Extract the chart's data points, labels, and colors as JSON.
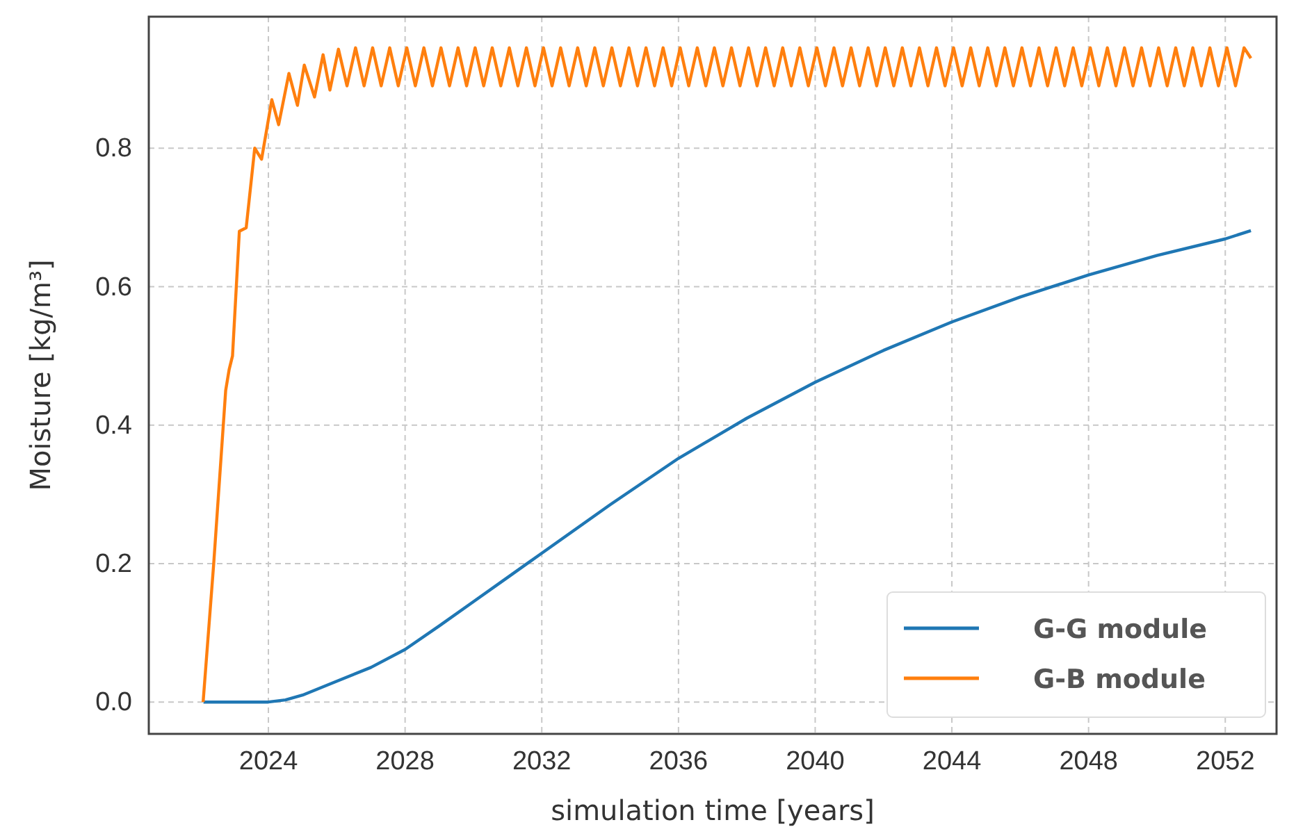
{
  "chart_data": {
    "type": "line",
    "xlabel": "simulation time [years]",
    "ylabel": "Moisture [kg/m³]",
    "xlim": [
      2020.5,
      2053.5
    ],
    "xticks": [
      2024,
      2028,
      2032,
      2036,
      2040,
      2044,
      2048,
      2052
    ],
    "ylim": [
      -0.046,
      0.99
    ],
    "yticks": [
      {
        "value": 0,
        "label": "0.0"
      },
      {
        "value": 0.2,
        "label": "0.2"
      },
      {
        "value": 0.4,
        "label": "0.4"
      },
      {
        "value": 0.6,
        "label": "0.6"
      },
      {
        "value": 0.8,
        "label": "0.8"
      }
    ],
    "grid": true,
    "legend": "bottom right",
    "line_style": "solid",
    "series": [
      {
        "name": "G-G module",
        "color": "#1f77b4",
        "x": [
          2022.1,
          2024,
          2024.5,
          2025,
          2026,
          2027,
          2028,
          2029,
          2030,
          2031,
          2032,
          2034,
          2036,
          2038,
          2040,
          2042,
          2044,
          2046,
          2048,
          2050,
          2052,
          2052.75
        ],
        "values": [
          0,
          0,
          0.003,
          0.01,
          0.03,
          0.05,
          0.076,
          0.11,
          0.145,
          0.18,
          0.215,
          0.285,
          0.352,
          0.41,
          0.462,
          0.508,
          0.549,
          0.585,
          0.617,
          0.645,
          0.669,
          0.681
        ]
      },
      {
        "name": "G-B module",
        "color": "#ff7f0e",
        "x": [
          2022.09,
          2022.4,
          2022.75,
          2022.85,
          2022.95,
          2023.15,
          2023.35,
          2023.6,
          2023.8,
          2024.1,
          2024.3,
          2024.6,
          2024.85,
          2025.05,
          2025.35,
          2025.6,
          2025.8,
          2026.05,
          2026.3,
          2026.55,
          2026.8,
          2027.05,
          2027.3,
          2027.55,
          2027.8,
          2028.05,
          2028.3,
          2028.55,
          2028.8,
          2029.05,
          2029.3,
          2029.55,
          2029.8,
          2030.05,
          2030.3,
          2030.55,
          2030.8,
          2031.05,
          2031.3,
          2031.55,
          2031.8,
          2032.05,
          2032.3,
          2032.55,
          2032.8,
          2033.05,
          2033.3,
          2033.55,
          2033.8,
          2034.05,
          2034.3,
          2034.55,
          2034.8,
          2035.05,
          2035.3,
          2035.55,
          2035.8,
          2036.05,
          2036.3,
          2036.55,
          2036.8,
          2037.05,
          2037.3,
          2037.55,
          2037.8,
          2038.05,
          2038.3,
          2038.55,
          2038.8,
          2039.05,
          2039.3,
          2039.55,
          2039.8,
          2040.05,
          2040.3,
          2040.55,
          2040.8,
          2041.05,
          2041.3,
          2041.55,
          2041.8,
          2042.05,
          2042.3,
          2042.55,
          2042.8,
          2043.05,
          2043.3,
          2043.55,
          2043.8,
          2044.05,
          2044.3,
          2044.55,
          2044.8,
          2045.05,
          2045.3,
          2045.55,
          2045.8,
          2046.05,
          2046.3,
          2046.55,
          2046.8,
          2047.05,
          2047.3,
          2047.55,
          2047.8,
          2048.05,
          2048.3,
          2048.55,
          2048.8,
          2049.05,
          2049.3,
          2049.55,
          2049.8,
          2050.05,
          2050.3,
          2050.55,
          2050.8,
          2051.05,
          2051.3,
          2051.55,
          2051.8,
          2052.05,
          2052.3,
          2052.55,
          2052.75
        ],
        "values": [
          0,
          0.2,
          0.45,
          0.48,
          0.5,
          0.68,
          0.685,
          0.8,
          0.784,
          0.87,
          0.834,
          0.908,
          0.862,
          0.92,
          0.874,
          0.935,
          0.884,
          0.943,
          0.89,
          0.945,
          0.89,
          0.945,
          0.89,
          0.945,
          0.89,
          0.945,
          0.89,
          0.945,
          0.89,
          0.945,
          0.89,
          0.945,
          0.89,
          0.945,
          0.89,
          0.945,
          0.89,
          0.945,
          0.89,
          0.945,
          0.89,
          0.945,
          0.89,
          0.945,
          0.89,
          0.945,
          0.89,
          0.945,
          0.89,
          0.945,
          0.89,
          0.945,
          0.89,
          0.945,
          0.89,
          0.945,
          0.89,
          0.945,
          0.89,
          0.945,
          0.89,
          0.945,
          0.89,
          0.945,
          0.89,
          0.945,
          0.89,
          0.945,
          0.89,
          0.945,
          0.89,
          0.945,
          0.89,
          0.945,
          0.89,
          0.945,
          0.89,
          0.945,
          0.89,
          0.945,
          0.89,
          0.945,
          0.89,
          0.945,
          0.89,
          0.945,
          0.89,
          0.945,
          0.89,
          0.945,
          0.89,
          0.945,
          0.89,
          0.945,
          0.89,
          0.945,
          0.89,
          0.945,
          0.89,
          0.945,
          0.89,
          0.945,
          0.89,
          0.945,
          0.89,
          0.945,
          0.89,
          0.945,
          0.89,
          0.945,
          0.89,
          0.945,
          0.89,
          0.945,
          0.89,
          0.945,
          0.89,
          0.945,
          0.89,
          0.945,
          0.89,
          0.945,
          0.89,
          0.945,
          0.93
        ]
      }
    ]
  }
}
